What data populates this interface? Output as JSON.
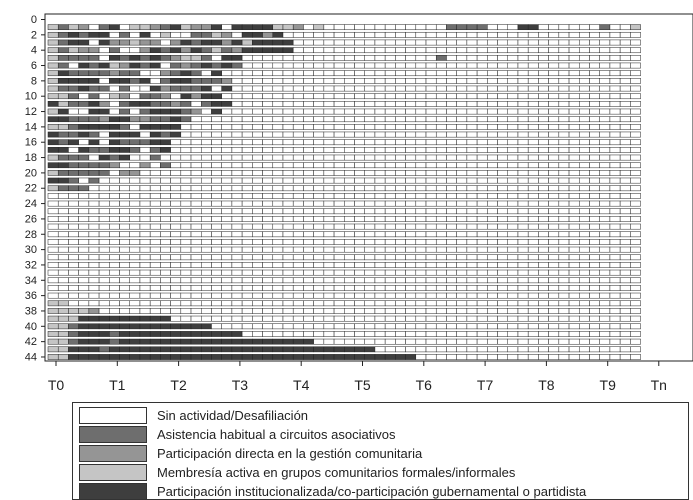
{
  "chart_data": {
    "type": "heatmap",
    "subtype": "sequence-index-plot",
    "n_sequences": 44,
    "n_periods": 58,
    "y_ticks": [
      "0",
      "2",
      "4",
      "6",
      "8",
      "10",
      "12",
      "14",
      "16",
      "18",
      "20",
      "22",
      "24",
      "26",
      "28",
      "30",
      "32",
      "34",
      "36",
      "38",
      "40",
      "42",
      "44"
    ],
    "x_ticks": [
      "T0",
      "T1",
      "T2",
      "T3",
      "T4",
      "T5",
      "T6",
      "T7",
      "T8",
      "T9",
      "Tn"
    ],
    "x_tick_period_index": [
      0,
      6,
      12,
      18,
      24,
      30,
      36,
      42,
      48,
      54,
      59
    ],
    "legend": [
      {
        "label": "Sin actividad/Desafiliación",
        "color": "#ffffff"
      },
      {
        "label": "Asistencia habitual a circuitos asociativos",
        "color": "#6e6e6e"
      },
      {
        "label": "Participación directa en la gestión comunitaria",
        "color": "#959595"
      },
      {
        "label": "Membresía activa en grupos comunitarios formales/informales",
        "color": "#c5c5c5"
      },
      {
        "label": "Participación institucionalizada/co-participación gubernamental o partidista",
        "color": "#3e3e3e"
      }
    ],
    "state_codes": "0=Sin actividad/Desafiliación, 1=Asistencia habitual a circuitos asociativos, 2=Participación directa en la gestión comunitaria, 3=Membresía activa en grupos comunitarios formales/informales, 4=Participación institucionalizada/co-participación gubernamental o partidista",
    "sequences": [
      "3132014033214322404444332030000000000001111000440000001003",
      "3141440104030011320442400000000000000000000000000000000000",
      "3144042232202414424344440000000000000000000000000000000000",
      "3132201002414241312444440000000000000000000000000000000000",
      "3111104141412331044000000000000000000010000000000000000000",
      "3104143241401214141000000000000000000000000000000000000000",
      "3411112110021410400000000000000000000000000000000000000000",
      "3444404414014411120000000000000000000000000000000000000000",
      "3114110100421114040000000000000000000000000000000000000000",
      "3310103201120424400000000000000000000000000000000000000000",
      "4311420144112101440000000000000000000000000000000000000000",
      "3400440101444120400000000000000000000000000000000000000000",
      "4411124422114100000000000000000000000000000000000000000000",
      "3314444104444000000000000000000000000000000000000000000000",
      "4114104440414000000000000000000000000000000000000000000000",
      "4140404111440000000000000000000000000000000000000000000000",
      "4404114410140000000000000000000000000000000000000000000000",
      "3111041400100000000000000000000000000000000000000000000000",
      "4411112002010000000000000000000000000000000000000000000000",
      "3111110220000000000000000000000000000000000000000000000000",
      "4410100000000000000000000000000000000000000000000000000000",
      "3111000000000000000000000000000000000000000000000000000000",
      "0000000000000000000000000000000000000000000000000000000000",
      "0000000000000000000000000000000000000000000000000000000000",
      "0000000000000000000000000000000000000000000000000000000000",
      "0000000000000000000000000000000000000000000000000000000000",
      "0000000000000000000000000000000000000000000000000000000000",
      "0000000000000000000000000000000000000000000000000000000000",
      "0000000000000000000000000000000000000000000000000000000000",
      "0000000000000000000000000000000000000000000000000000000000",
      "0000000000000000000000000000000000000000000000000000000000",
      "0000000000000000000000000000000000000000000000000000000000",
      "0000000000000000000000000000000000000000000000000000000000",
      "0000000000000000000000000000000000000000000000000000000000",
      "0000000000000000000000000000000000000000000000000000000000",
      "0000000000000000000000000000000000000000000000000000000000",
      "3300000000000000000000000000000000000000000000000000000000",
      "3333200000000000000000000000000000000000000000000000000000",
      "3334444444440000000000000000000000000000000000000000000000",
      "3314444444444444000000000000000000000000000000000000000000",
      "3314441444444444444000000000000000000000000000000000000000",
      "3314441444444444444444444400000000000000000000000000000000",
      "3344414444444444444444444444444400000000000000000000000000",
      "3344444444444444444444444444444444440000000000000000000000"
    ]
  }
}
